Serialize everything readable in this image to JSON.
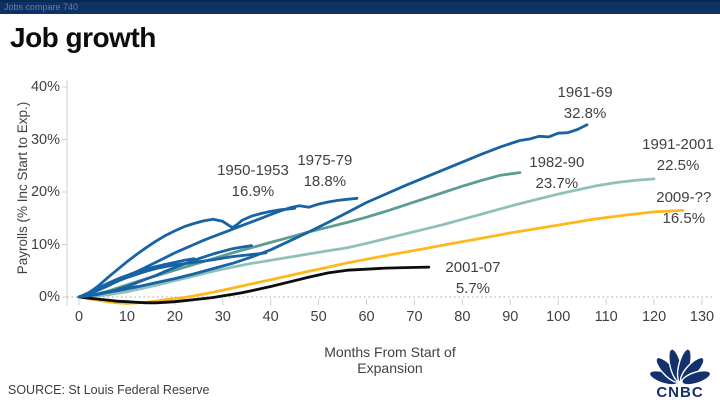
{
  "page": {
    "slug": "Jobs compare 740",
    "title": "Job growth",
    "source": "SOURCE: St Louis Federal Reserve",
    "logo": "CNBC"
  },
  "colors": {
    "topbar": "#0e3266",
    "blue": "#1763a3",
    "teal_dark": "#5b9c93",
    "teal_light": "#8fc1ba",
    "yellow": "#ffb81c",
    "black": "#0d0d0d",
    "logo_navy": "#14316e",
    "grid": "#b9b9b9",
    "axis": "#d0d0d0",
    "text": "#414042"
  },
  "chart_data": {
    "type": "line",
    "title": "Job growth",
    "xlabel": "Months From Start of Expansion",
    "ylabel": "Payrolls (% Inc Start to Exp.)",
    "xlim": [
      0,
      133
    ],
    "ylim": [
      -2,
      41
    ],
    "grid": "dotted horizontal line at 0% only",
    "legend": "none (direct annotations)",
    "x_ticks": [
      0,
      10,
      20,
      30,
      40,
      50,
      60,
      70,
      80,
      90,
      100,
      110,
      120,
      130
    ],
    "y_ticks": [
      {
        "value": 0,
        "label": "0%"
      },
      {
        "value": 10,
        "label": "10%"
      },
      {
        "value": 20,
        "label": "20%"
      },
      {
        "value": 30,
        "label": "30%"
      },
      {
        "value": 40,
        "label": "40%"
      }
    ],
    "series": [
      {
        "name": "1991-2001",
        "final_value": "22.5%",
        "color": "#8fc1ba",
        "points": [
          [
            0,
            0
          ],
          [
            2,
            0.1
          ],
          [
            4,
            0.2
          ],
          [
            6,
            0.4
          ],
          [
            8,
            0.7
          ],
          [
            10,
            1.0
          ],
          [
            12,
            1.4
          ],
          [
            16,
            2.2
          ],
          [
            20,
            3.1
          ],
          [
            24,
            4.0
          ],
          [
            28,
            4.9
          ],
          [
            32,
            5.7
          ],
          [
            36,
            6.4
          ],
          [
            40,
            7.0
          ],
          [
            44,
            7.6
          ],
          [
            48,
            8.2
          ],
          [
            52,
            8.8
          ],
          [
            56,
            9.4
          ],
          [
            60,
            10.2
          ],
          [
            64,
            11.1
          ],
          [
            68,
            12.0
          ],
          [
            72,
            12.9
          ],
          [
            76,
            13.8
          ],
          [
            80,
            14.8
          ],
          [
            84,
            15.8
          ],
          [
            88,
            16.8
          ],
          [
            92,
            17.8
          ],
          [
            96,
            18.7
          ],
          [
            100,
            19.6
          ],
          [
            104,
            20.4
          ],
          [
            108,
            21.2
          ],
          [
            112,
            21.8
          ],
          [
            116,
            22.2
          ],
          [
            120,
            22.5
          ]
        ]
      },
      {
        "name": "1982-90",
        "final_value": "23.7%",
        "color": "#5b9c93",
        "points": [
          [
            0,
            0
          ],
          [
            2,
            0.2
          ],
          [
            4,
            0.6
          ],
          [
            6,
            1.1
          ],
          [
            8,
            1.7
          ],
          [
            10,
            2.3
          ],
          [
            12,
            2.9
          ],
          [
            16,
            4.0
          ],
          [
            20,
            5.1
          ],
          [
            24,
            6.2
          ],
          [
            28,
            7.3
          ],
          [
            32,
            8.4
          ],
          [
            36,
            9.4
          ],
          [
            40,
            10.4
          ],
          [
            44,
            11.4
          ],
          [
            48,
            12.4
          ],
          [
            52,
            13.3
          ],
          [
            56,
            14.2
          ],
          [
            60,
            15.2
          ],
          [
            64,
            16.3
          ],
          [
            68,
            17.5
          ],
          [
            72,
            18.7
          ],
          [
            76,
            19.9
          ],
          [
            80,
            21.1
          ],
          [
            84,
            22.2
          ],
          [
            88,
            23.2
          ],
          [
            92,
            23.7
          ]
        ]
      },
      {
        "name": "2009-??",
        "final_value": "16.5%",
        "color": "#ffb81c",
        "points": [
          [
            0,
            0
          ],
          [
            2,
            -0.3
          ],
          [
            4,
            -0.6
          ],
          [
            6,
            -0.9
          ],
          [
            8,
            -1.1
          ],
          [
            10,
            -1.2
          ],
          [
            12,
            -1.1
          ],
          [
            14,
            -1.0
          ],
          [
            16,
            -0.8
          ],
          [
            18,
            -0.5
          ],
          [
            20,
            -0.3
          ],
          [
            22,
            -0.1
          ],
          [
            24,
            0.2
          ],
          [
            28,
            0.9
          ],
          [
            32,
            1.7
          ],
          [
            36,
            2.5
          ],
          [
            40,
            3.3
          ],
          [
            44,
            4.1
          ],
          [
            48,
            4.9
          ],
          [
            52,
            5.7
          ],
          [
            56,
            6.5
          ],
          [
            60,
            7.2
          ],
          [
            66,
            8.2
          ],
          [
            72,
            9.2
          ],
          [
            78,
            10.2
          ],
          [
            84,
            11.2
          ],
          [
            90,
            12.2
          ],
          [
            96,
            13.1
          ],
          [
            102,
            14.0
          ],
          [
            108,
            14.9
          ],
          [
            114,
            15.6
          ],
          [
            120,
            16.2
          ],
          [
            126,
            16.5
          ]
        ]
      },
      {
        "name": "2001-07",
        "final_value": "5.7%",
        "color": "#0d0d0d",
        "points": [
          [
            0,
            0
          ],
          [
            2,
            -0.2
          ],
          [
            4,
            -0.4
          ],
          [
            6,
            -0.6
          ],
          [
            8,
            -0.8
          ],
          [
            10,
            -0.9
          ],
          [
            12,
            -1.0
          ],
          [
            14,
            -1.1
          ],
          [
            16,
            -1.1
          ],
          [
            18,
            -1.0
          ],
          [
            20,
            -0.9
          ],
          [
            22,
            -0.7
          ],
          [
            24,
            -0.5
          ],
          [
            26,
            -0.3
          ],
          [
            28,
            -0.1
          ],
          [
            30,
            0.2
          ],
          [
            32,
            0.5
          ],
          [
            34,
            0.8
          ],
          [
            36,
            1.2
          ],
          [
            40,
            2.0
          ],
          [
            44,
            2.9
          ],
          [
            48,
            3.8
          ],
          [
            52,
            4.6
          ],
          [
            56,
            5.1
          ],
          [
            60,
            5.3
          ],
          [
            64,
            5.5
          ],
          [
            68,
            5.6
          ],
          [
            73,
            5.7
          ]
        ]
      },
      {
        "name": "",
        "final_value": "",
        "color": "#1763a3",
        "points": [
          [
            0,
            0
          ],
          [
            2,
            0.3
          ],
          [
            4,
            0.6
          ],
          [
            6,
            1.0
          ],
          [
            8,
            1.3
          ],
          [
            10,
            1.6
          ],
          [
            12,
            2.0
          ]
        ]
      },
      {
        "name": "",
        "final_value": "",
        "color": "#1763a3",
        "points": [
          [
            0,
            0
          ],
          [
            2,
            0.8
          ],
          [
            4,
            1.7
          ],
          [
            6,
            2.6
          ],
          [
            8,
            3.4
          ],
          [
            10,
            4.1
          ],
          [
            12,
            4.8
          ],
          [
            14,
            5.3
          ],
          [
            16,
            5.8
          ],
          [
            18,
            6.2
          ],
          [
            20,
            6.6
          ],
          [
            22,
            7.0
          ],
          [
            24,
            7.3
          ]
        ]
      },
      {
        "name": "",
        "final_value": "",
        "color": "#1763a3",
        "points": [
          [
            0,
            0
          ],
          [
            2,
            0.6
          ],
          [
            4,
            1.4
          ],
          [
            6,
            2.2
          ],
          [
            8,
            3.0
          ],
          [
            10,
            3.7
          ],
          [
            12,
            4.3
          ],
          [
            14,
            4.9
          ],
          [
            16,
            5.4
          ],
          [
            18,
            5.8
          ],
          [
            20,
            6.1
          ],
          [
            24,
            6.6
          ],
          [
            28,
            7.1
          ],
          [
            32,
            7.7
          ],
          [
            36,
            8.1
          ],
          [
            39,
            8.4
          ]
        ]
      },
      {
        "name": "",
        "final_value": "",
        "color": "#1763a3",
        "points": [
          [
            0,
            0
          ],
          [
            2,
            0.2
          ],
          [
            4,
            0.5
          ],
          [
            6,
            0.9
          ],
          [
            8,
            1.4
          ],
          [
            10,
            2.0
          ],
          [
            12,
            2.7
          ],
          [
            14,
            3.4
          ],
          [
            16,
            4.1
          ],
          [
            18,
            4.9
          ],
          [
            20,
            5.6
          ],
          [
            22,
            6.3
          ],
          [
            24,
            7.0
          ],
          [
            26,
            7.6
          ],
          [
            28,
            8.2
          ],
          [
            30,
            8.7
          ],
          [
            32,
            9.2
          ],
          [
            34,
            9.5
          ],
          [
            36,
            9.8
          ]
        ]
      },
      {
        "name": "1950-1953",
        "final_value": "16.9%",
        "color": "#1763a3",
        "points": [
          [
            0,
            0
          ],
          [
            1,
            0.3
          ],
          [
            2,
            0.8
          ],
          [
            3,
            1.4
          ],
          [
            4,
            2.1
          ],
          [
            5,
            2.9
          ],
          [
            6,
            3.7
          ],
          [
            8,
            5.2
          ],
          [
            10,
            6.7
          ],
          [
            12,
            8.1
          ],
          [
            14,
            9.4
          ],
          [
            16,
            10.6
          ],
          [
            18,
            11.7
          ],
          [
            20,
            12.6
          ],
          [
            22,
            13.4
          ],
          [
            24,
            14.0
          ],
          [
            26,
            14.5
          ],
          [
            28,
            14.8
          ],
          [
            30,
            14.4
          ],
          [
            31,
            13.8
          ],
          [
            32,
            13.2
          ],
          [
            33,
            13.8
          ],
          [
            34,
            14.6
          ],
          [
            36,
            15.4
          ],
          [
            38,
            15.9
          ],
          [
            40,
            16.3
          ],
          [
            42,
            16.6
          ],
          [
            44,
            16.8
          ],
          [
            45,
            16.9
          ]
        ]
      },
      {
        "name": "1975-79",
        "final_value": "18.8%",
        "color": "#1763a3",
        "points": [
          [
            0,
            0
          ],
          [
            2,
            0.6
          ],
          [
            4,
            1.3
          ],
          [
            6,
            2.1
          ],
          [
            8,
            3.0
          ],
          [
            10,
            3.9
          ],
          [
            12,
            4.8
          ],
          [
            14,
            5.7
          ],
          [
            16,
            6.6
          ],
          [
            18,
            7.5
          ],
          [
            20,
            8.4
          ],
          [
            22,
            9.2
          ],
          [
            24,
            10.0
          ],
          [
            26,
            10.8
          ],
          [
            28,
            11.5
          ],
          [
            30,
            12.2
          ],
          [
            32,
            12.9
          ],
          [
            34,
            13.6
          ],
          [
            36,
            14.3
          ],
          [
            38,
            15.0
          ],
          [
            40,
            15.7
          ],
          [
            42,
            16.4
          ],
          [
            44,
            17.0
          ],
          [
            46,
            17.4
          ],
          [
            48,
            17.1
          ],
          [
            50,
            17.7
          ],
          [
            52,
            18.1
          ],
          [
            54,
            18.4
          ],
          [
            56,
            18.6
          ],
          [
            58,
            18.8
          ]
        ]
      },
      {
        "name": "1961-69",
        "final_value": "32.8%",
        "color": "#1763a3",
        "points": [
          [
            0,
            0
          ],
          [
            4,
            0.6
          ],
          [
            8,
            1.2
          ],
          [
            12,
            1.9
          ],
          [
            16,
            2.7
          ],
          [
            20,
            3.5
          ],
          [
            24,
            4.4
          ],
          [
            28,
            5.4
          ],
          [
            32,
            6.4
          ],
          [
            36,
            7.6
          ],
          [
            40,
            9.0
          ],
          [
            44,
            10.7
          ],
          [
            48,
            12.4
          ],
          [
            52,
            14.2
          ],
          [
            56,
            16.1
          ],
          [
            60,
            18.0
          ],
          [
            64,
            19.6
          ],
          [
            68,
            21.2
          ],
          [
            72,
            22.7
          ],
          [
            76,
            24.2
          ],
          [
            80,
            25.7
          ],
          [
            84,
            27.2
          ],
          [
            88,
            28.6
          ],
          [
            92,
            29.8
          ],
          [
            94,
            30.1
          ],
          [
            96,
            30.6
          ],
          [
            98,
            30.5
          ],
          [
            100,
            31.2
          ],
          [
            102,
            31.3
          ],
          [
            104,
            31.9
          ],
          [
            106,
            32.8
          ]
        ]
      }
    ],
    "annotations": [
      {
        "label": "1950-1953",
        "value": "16.9%",
        "month": 36.3,
        "pct": 26.1
      },
      {
        "label": "1975-79",
        "value": "18.8%",
        "month": 51.3,
        "pct": 28.0
      },
      {
        "label": "1961-69",
        "value": "32.8%",
        "month": 105.6,
        "pct": 41.0
      },
      {
        "label": "1982-90",
        "value": "23.7%",
        "month": 99.7,
        "pct": 27.6
      },
      {
        "label": "1991-2001",
        "value": "22.5%",
        "month": 125.0,
        "pct": 31.0
      },
      {
        "label": "2009-??",
        "value": "16.5%",
        "month": 126.2,
        "pct": 21.0
      },
      {
        "label": "2001-07",
        "value": "5.7%",
        "month": 82.2,
        "pct": 7.6
      }
    ]
  }
}
